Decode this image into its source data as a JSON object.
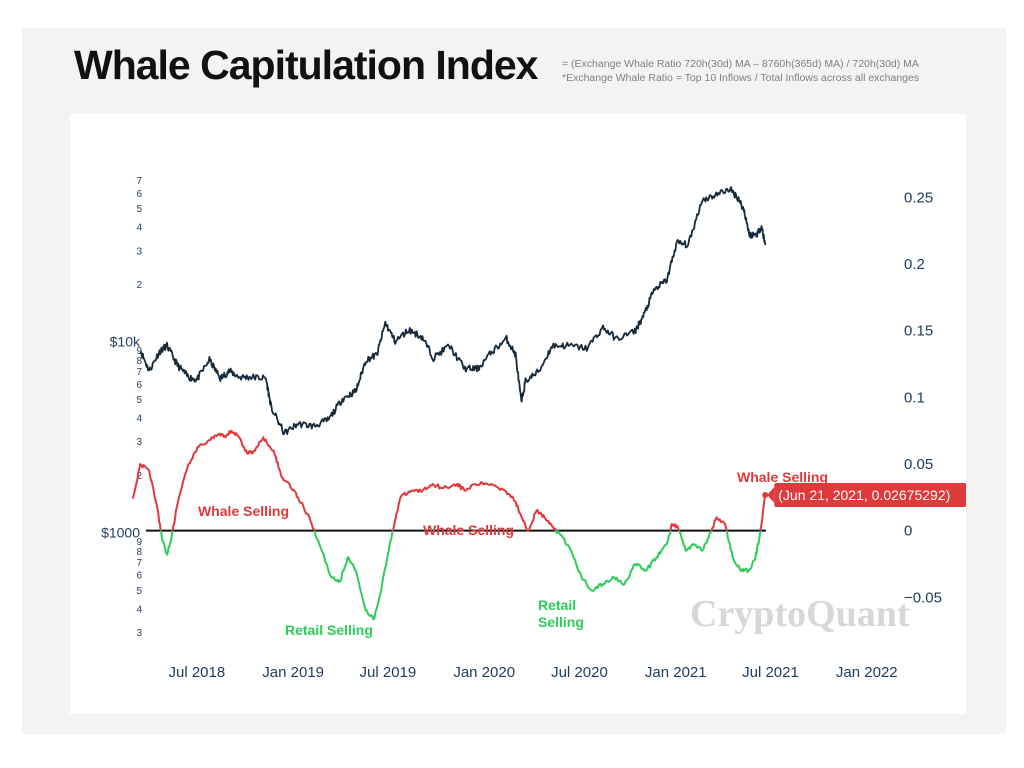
{
  "title": "Whale Capitulation Index",
  "subtitle": {
    "line1": "= (Exchange Whale Ratio 720h(30d) MA – 8760h(365d) MA) / 720h(30d) MA",
    "line2": "*Exchange Whale Ratio = Top 10 Inflows / Total Inflows across all exchanges"
  },
  "watermark": "CryptoQuant",
  "colors": {
    "price": "#172a3a",
    "whale": "#e0393b",
    "retail": "#2ecc5a",
    "axis_text": "#1f3b5c",
    "tooltip_bg": "#e0393b",
    "watermark": "#d7d7d7"
  },
  "chart_data": {
    "type": "line",
    "x_ticks": [
      "Jul 2018",
      "Jan 2019",
      "Jul 2019",
      "Jan 2020",
      "Jul 2020",
      "Jan 2021",
      "Jul 2021",
      "Jan 2022"
    ],
    "x_range": [
      "2018-03-01",
      "2022-03-15"
    ],
    "left_axis": {
      "scale": "log",
      "major_labels": [
        {
          "value": 1000,
          "text": "$1000"
        },
        {
          "value": 10000,
          "text": "$10k"
        }
      ],
      "minor_labels": [
        {
          "value": 300,
          "text": "3"
        },
        {
          "value": 400,
          "text": "4"
        },
        {
          "value": 500,
          "text": "5"
        },
        {
          "value": 600,
          "text": "6"
        },
        {
          "value": 700,
          "text": "7"
        },
        {
          "value": 800,
          "text": "8"
        },
        {
          "value": 900,
          "text": "9"
        },
        {
          "value": 2000,
          "text": "2"
        },
        {
          "value": 3000,
          "text": "3"
        },
        {
          "value": 4000,
          "text": "4"
        },
        {
          "value": 5000,
          "text": "5"
        },
        {
          "value": 6000,
          "text": "6"
        },
        {
          "value": 7000,
          "text": "7"
        },
        {
          "value": 8000,
          "text": "8"
        },
        {
          "value": 9000,
          "text": "9"
        },
        {
          "value": 20000,
          "text": "2"
        },
        {
          "value": 30000,
          "text": "3"
        },
        {
          "value": 40000,
          "text": "4"
        },
        {
          "value": 50000,
          "text": "5"
        },
        {
          "value": 60000,
          "text": "6"
        },
        {
          "value": 70000,
          "text": "7"
        }
      ],
      "range": [
        260,
        80000
      ]
    },
    "right_axis": {
      "ticks": [
        -0.05,
        0,
        0.05,
        0.1,
        0.15,
        0.2,
        0.25
      ],
      "tick_labels": [
        "−0.05",
        "0",
        "0.05",
        "0.1",
        "0.15",
        "0.2",
        "0.25"
      ],
      "range": [
        -0.07,
        0.26
      ]
    },
    "series": [
      {
        "name": "price",
        "axis": "left",
        "points": [
          [
            "2018-03-15",
            9000
          ],
          [
            "2018-04-01",
            7000
          ],
          [
            "2018-04-20",
            8800
          ],
          [
            "2018-05-05",
            9500
          ],
          [
            "2018-05-25",
            7500
          ],
          [
            "2018-06-15",
            6500
          ],
          [
            "2018-07-01",
            6300
          ],
          [
            "2018-07-25",
            8000
          ],
          [
            "2018-08-15",
            6400
          ],
          [
            "2018-09-01",
            7000
          ],
          [
            "2018-09-20",
            6500
          ],
          [
            "2018-10-15",
            6500
          ],
          [
            "2018-11-10",
            6400
          ],
          [
            "2018-11-20",
            4500
          ],
          [
            "2018-12-15",
            3300
          ],
          [
            "2019-01-10",
            3700
          ],
          [
            "2019-02-10",
            3600
          ],
          [
            "2019-03-10",
            3900
          ],
          [
            "2019-04-05",
            5000
          ],
          [
            "2019-05-01",
            5500
          ],
          [
            "2019-05-20",
            8000
          ],
          [
            "2019-06-10",
            8500
          ],
          [
            "2019-06-26",
            12500
          ],
          [
            "2019-07-15",
            10000
          ],
          [
            "2019-08-10",
            11500
          ],
          [
            "2019-09-05",
            10500
          ],
          [
            "2019-09-26",
            8200
          ],
          [
            "2019-10-26",
            9500
          ],
          [
            "2019-11-25",
            7200
          ],
          [
            "2019-12-20",
            7200
          ],
          [
            "2020-01-15",
            8800
          ],
          [
            "2020-02-13",
            10300
          ],
          [
            "2020-03-01",
            8500
          ],
          [
            "2020-03-12",
            4800
          ],
          [
            "2020-03-20",
            6200
          ],
          [
            "2020-04-15",
            7000
          ],
          [
            "2020-05-10",
            9500
          ],
          [
            "2020-06-10",
            9500
          ],
          [
            "2020-07-15",
            9200
          ],
          [
            "2020-08-15",
            11800
          ],
          [
            "2020-09-10",
            10300
          ],
          [
            "2020-10-15",
            11300
          ],
          [
            "2020-11-01",
            13700
          ],
          [
            "2020-11-20",
            18500
          ],
          [
            "2020-12-15",
            21000
          ],
          [
            "2021-01-03",
            33000
          ],
          [
            "2021-01-25",
            32000
          ],
          [
            "2021-02-20",
            55000
          ],
          [
            "2021-03-15",
            58000
          ],
          [
            "2021-04-14",
            63000
          ],
          [
            "2021-05-01",
            56000
          ],
          [
            "2021-05-12",
            48000
          ],
          [
            "2021-05-22",
            36000
          ],
          [
            "2021-06-05",
            36500
          ],
          [
            "2021-06-14",
            40000
          ],
          [
            "2021-06-21",
            32000
          ]
        ]
      },
      {
        "name": "whale capitulation index",
        "axis": "right",
        "points": [
          [
            "2018-03-01",
            0.024
          ],
          [
            "2018-03-15",
            0.05
          ],
          [
            "2018-04-01",
            0.045
          ],
          [
            "2018-04-15",
            0.02
          ],
          [
            "2018-04-25",
            -0.005
          ],
          [
            "2018-05-05",
            -0.018
          ],
          [
            "2018-05-12",
            -0.008
          ],
          [
            "2018-05-25",
            0.02
          ],
          [
            "2018-06-15",
            0.05
          ],
          [
            "2018-07-05",
            0.063
          ],
          [
            "2018-07-25",
            0.068
          ],
          [
            "2018-08-10",
            0.072
          ],
          [
            "2018-08-25",
            0.07
          ],
          [
            "2018-09-05",
            0.075
          ],
          [
            "2018-09-20",
            0.07
          ],
          [
            "2018-10-05",
            0.058
          ],
          [
            "2018-10-20",
            0.06
          ],
          [
            "2018-11-05",
            0.07
          ],
          [
            "2018-11-25",
            0.06
          ],
          [
            "2018-12-10",
            0.04
          ],
          [
            "2018-12-25",
            0.035
          ],
          [
            "2019-01-10",
            0.025
          ],
          [
            "2019-02-01",
            0.01
          ],
          [
            "2019-02-20",
            -0.01
          ],
          [
            "2019-03-15",
            -0.035
          ],
          [
            "2019-04-01",
            -0.038
          ],
          [
            "2019-04-15",
            -0.02
          ],
          [
            "2019-05-01",
            -0.03
          ],
          [
            "2019-05-20",
            -0.06
          ],
          [
            "2019-06-05",
            -0.066
          ],
          [
            "2019-06-20",
            -0.04
          ],
          [
            "2019-07-10",
            0.0
          ],
          [
            "2019-07-25",
            0.025
          ],
          [
            "2019-08-15",
            0.03
          ],
          [
            "2019-09-05",
            0.03
          ],
          [
            "2019-09-25",
            0.035
          ],
          [
            "2019-10-15",
            0.032
          ],
          [
            "2019-11-10",
            0.035
          ],
          [
            "2019-11-25",
            0.03
          ],
          [
            "2019-12-15",
            0.035
          ],
          [
            "2020-01-15",
            0.035
          ],
          [
            "2020-02-10",
            0.03
          ],
          [
            "2020-02-25",
            0.025
          ],
          [
            "2020-03-10",
            0.013
          ],
          [
            "2020-03-25",
            0.0
          ],
          [
            "2020-04-10",
            0.015
          ],
          [
            "2020-04-25",
            0.01
          ],
          [
            "2020-05-10",
            0.003
          ],
          [
            "2020-05-25",
            -0.003
          ],
          [
            "2020-06-15",
            -0.015
          ],
          [
            "2020-07-05",
            -0.035
          ],
          [
            "2020-07-25",
            -0.045
          ],
          [
            "2020-08-15",
            -0.04
          ],
          [
            "2020-09-05",
            -0.035
          ],
          [
            "2020-09-25",
            -0.04
          ],
          [
            "2020-10-15",
            -0.025
          ],
          [
            "2020-11-05",
            -0.03
          ],
          [
            "2020-11-25",
            -0.02
          ],
          [
            "2020-12-15",
            -0.01
          ],
          [
            "2020-12-25",
            0.005
          ],
          [
            "2021-01-05",
            0.003
          ],
          [
            "2021-01-20",
            -0.015
          ],
          [
            "2021-02-05",
            -0.01
          ],
          [
            "2021-02-20",
            -0.015
          ],
          [
            "2021-03-05",
            -0.005
          ],
          [
            "2021-03-20",
            0.01
          ],
          [
            "2021-04-05",
            0.005
          ],
          [
            "2021-04-20",
            -0.02
          ],
          [
            "2021-05-05",
            -0.03
          ],
          [
            "2021-05-20",
            -0.03
          ],
          [
            "2021-06-01",
            -0.022
          ],
          [
            "2021-06-10",
            -0.005
          ],
          [
            "2021-06-21",
            0.0268
          ]
        ]
      }
    ],
    "annotations": [
      {
        "text": "Whale Selling",
        "color": "red"
      },
      {
        "text": "Whale Selling",
        "color": "red"
      },
      {
        "text": "Whale Selling",
        "color": "red"
      },
      {
        "text": "Retail Selling",
        "color": "green"
      },
      {
        "text": "Retail\nSelling",
        "color": "green"
      }
    ],
    "tooltip": {
      "text": "(Jun 21, 2021, 0.02675292)",
      "date": "2021-06-21",
      "value": 0.02675292
    }
  }
}
